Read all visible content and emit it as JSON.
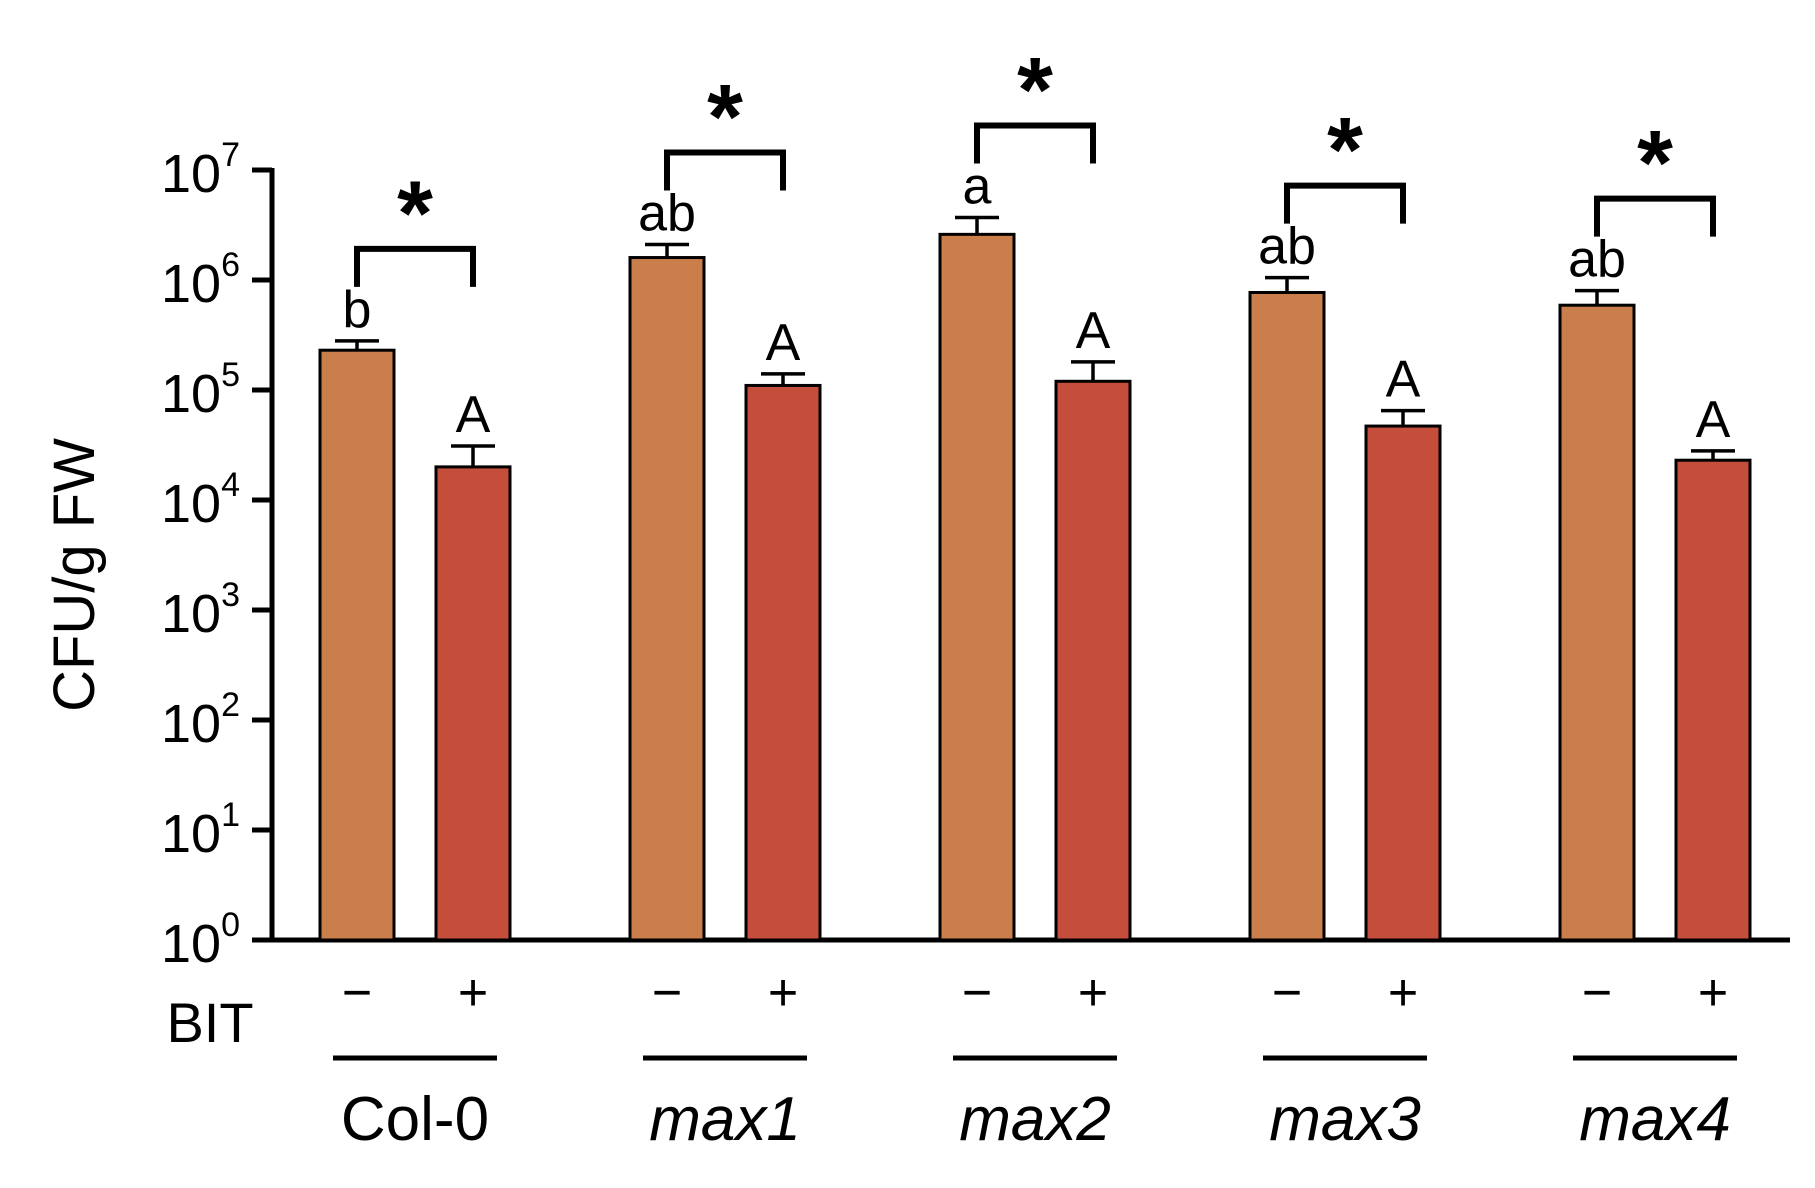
{
  "chart_data": {
    "type": "bar",
    "scale": "log10",
    "ylabel": "CFU/g FW",
    "ylim_exponent": [
      0,
      7
    ],
    "y_ticks": [
      {
        "base": "10",
        "exp": "0"
      },
      {
        "base": "10",
        "exp": "1"
      },
      {
        "base": "10",
        "exp": "2"
      },
      {
        "base": "10",
        "exp": "3"
      },
      {
        "base": "10",
        "exp": "4"
      },
      {
        "base": "10",
        "exp": "5"
      },
      {
        "base": "10",
        "exp": "6"
      },
      {
        "base": "10",
        "exp": "7"
      }
    ],
    "factor_label": "BIT",
    "series": [
      {
        "name": "BIT −",
        "sign": "−",
        "color": "#C97E4B"
      },
      {
        "name": "BIT +",
        "sign": "+",
        "color": "#C44D3B"
      }
    ],
    "significance_marker": "*",
    "groups": [
      {
        "label": "Col-0",
        "italic": false,
        "minus": {
          "value": 230000,
          "error_high": 280000,
          "letter": "b"
        },
        "plus": {
          "value": 20000,
          "error_high": 31000,
          "letter": "A"
        }
      },
      {
        "label": "max1",
        "italic": true,
        "minus": {
          "value": 1600000,
          "error_high": 2100000,
          "letter": "ab"
        },
        "plus": {
          "value": 110000,
          "error_high": 140000,
          "letter": "A"
        }
      },
      {
        "label": "max2",
        "italic": true,
        "minus": {
          "value": 2600000,
          "error_high": 3700000,
          "letter": "a"
        },
        "plus": {
          "value": 120000,
          "error_high": 180000,
          "letter": "A"
        }
      },
      {
        "label": "max3",
        "italic": true,
        "minus": {
          "value": 770000,
          "error_high": 1050000,
          "letter": "ab"
        },
        "plus": {
          "value": 47000,
          "error_high": 65000,
          "letter": "A"
        }
      },
      {
        "label": "max4",
        "italic": true,
        "minus": {
          "value": 590000,
          "error_high": 800000,
          "letter": "ab"
        },
        "plus": {
          "value": 23000,
          "error_high": 28000,
          "letter": "A"
        }
      }
    ]
  }
}
